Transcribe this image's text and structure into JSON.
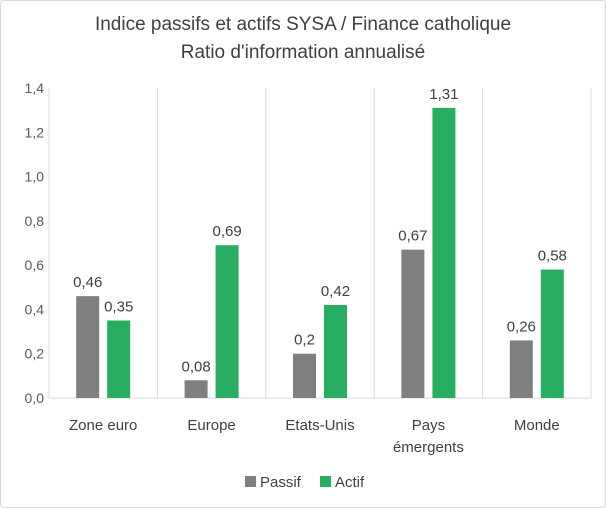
{
  "chart_data": {
    "type": "bar",
    "title": [
      "Indice passifs et actifs SYSA / Finance catholique",
      "Ratio d'information annualisé"
    ],
    "categories": [
      [
        "Zone euro"
      ],
      [
        "Europe"
      ],
      [
        "Etats-Unis"
      ],
      [
        "Pays",
        "émergents"
      ],
      [
        "Monde"
      ]
    ],
    "series": [
      {
        "name": "Passif",
        "color": "#7f7f7f",
        "values": [
          0.46,
          0.08,
          0.2,
          0.67,
          0.26
        ],
        "labels": [
          "0,46",
          "0,08",
          "0,2",
          "0,67",
          "0,26"
        ]
      },
      {
        "name": "Actif",
        "color": "#27ae60",
        "values": [
          0.35,
          0.69,
          0.42,
          1.31,
          0.58
        ],
        "labels": [
          "0,35",
          "0,69",
          "0,42",
          "1,31",
          "0,58"
        ]
      }
    ],
    "ylim": [
      0,
      1.4
    ],
    "yticks": [
      "0,0",
      "0,2",
      "0,4",
      "0,6",
      "0,8",
      "1,0",
      "1,2",
      "1,4"
    ],
    "grid": "vertical-separators",
    "legend": "bottom"
  }
}
